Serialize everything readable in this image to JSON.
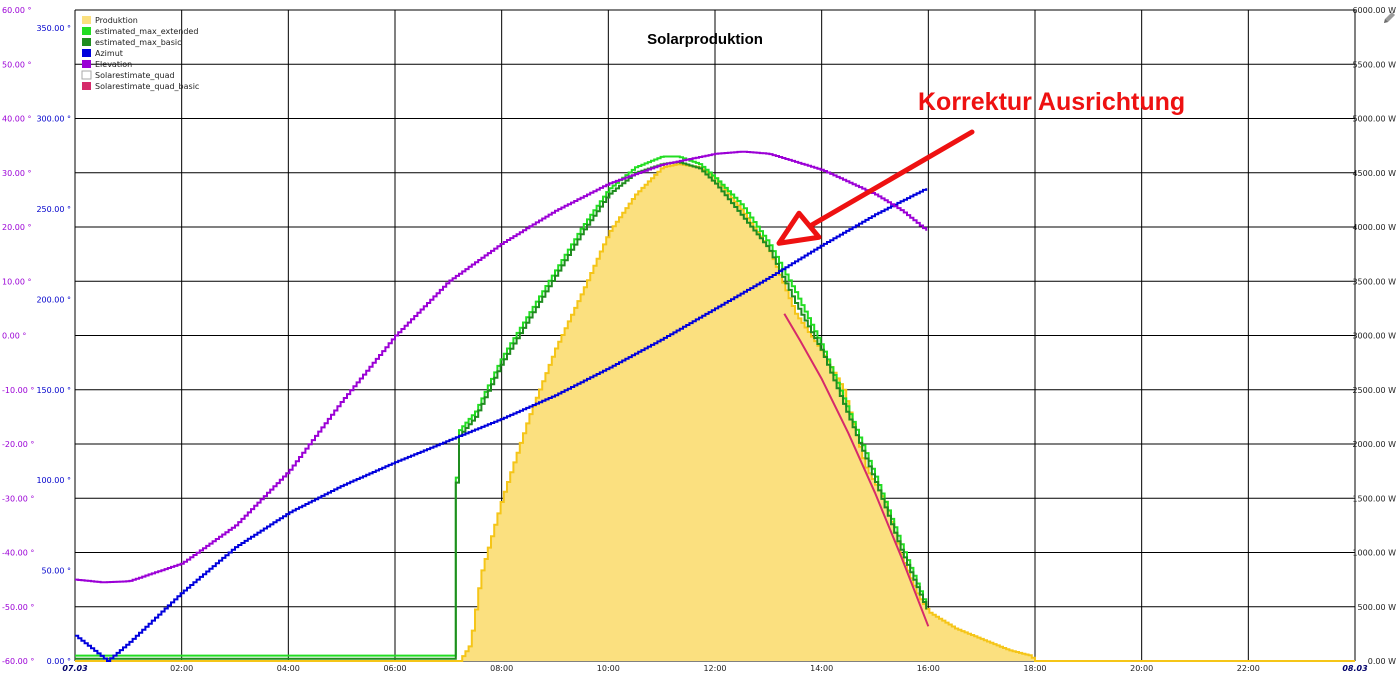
{
  "chart_data": {
    "type": "line",
    "title": "Solarproduktion",
    "x_tick_labels": [
      "07.03",
      "02:00",
      "04:00",
      "06:00",
      "08:00",
      "10:00",
      "12:00",
      "14:00",
      "16:00",
      "18:00",
      "20:00",
      "22:00",
      "08.03"
    ],
    "x_range_hours": [
      0,
      24
    ],
    "y_left_outer": {
      "unit": "°",
      "ticks": [
        "60.00 °",
        "50.00 °",
        "40.00 °",
        "30.00 °",
        "20.00 °",
        "10.00 °",
        "0.00 °",
        "-10.00 °",
        "-20.00 °",
        "-30.00 °",
        "-40.00 °",
        "-50.00 °",
        "-60.00 °"
      ],
      "range": [
        -60,
        60
      ],
      "color": "#9b00d6"
    },
    "y_left_inner": {
      "unit": "°",
      "ticks": [
        "350.00 °",
        "300.00 °",
        "250.00 °",
        "200.00 °",
        "150.00 °",
        "100.00 °",
        "50.00 °",
        "0.00 °"
      ],
      "range": [
        0,
        360
      ],
      "color": "#0000cc"
    },
    "y_right": {
      "unit": "W",
      "ticks": [
        "6000.00 W",
        "5500.00 W",
        "5000.00 W",
        "4500.00 W",
        "4000.00 W",
        "3500.00 W",
        "3000.00 W",
        "2500.00 W",
        "2000.00 W",
        "1500.00 W",
        "1000.00 W",
        "500.00 W",
        "0.00 W"
      ],
      "range": [
        0,
        6000
      ]
    },
    "grid": true,
    "legend_position": "top-left",
    "series": [
      {
        "name": "Produktion",
        "color": "#f5c518",
        "fill": "#fbe07f",
        "axis": "right",
        "points": [
          [
            0,
            0
          ],
          [
            7.2,
            0
          ],
          [
            7.4,
            150
          ],
          [
            7.6,
            800
          ],
          [
            8.0,
            1500
          ],
          [
            8.5,
            2250
          ],
          [
            9.0,
            2880
          ],
          [
            9.5,
            3400
          ],
          [
            10.0,
            3950
          ],
          [
            10.5,
            4300
          ],
          [
            11.0,
            4550
          ],
          [
            11.3,
            4580
          ],
          [
            11.7,
            4550
          ],
          [
            12.0,
            4450
          ],
          [
            12.5,
            4150
          ],
          [
            13.0,
            3800
          ],
          [
            13.5,
            3200
          ],
          [
            14.0,
            2850
          ],
          [
            14.4,
            2500
          ],
          [
            14.8,
            1800
          ],
          [
            15.2,
            1450
          ],
          [
            15.5,
            950
          ],
          [
            15.8,
            600
          ],
          [
            16.0,
            450
          ],
          [
            16.5,
            300
          ],
          [
            17.0,
            200
          ],
          [
            17.5,
            100
          ],
          [
            17.9,
            50
          ],
          [
            18.0,
            0
          ],
          [
            24,
            0
          ]
        ]
      },
      {
        "name": "estimated_max_extended",
        "color": "#22dd22",
        "axis": "right",
        "points": [
          [
            0,
            50
          ],
          [
            7.1,
            50
          ],
          [
            7.15,
            2100
          ],
          [
            7.5,
            2300
          ],
          [
            8.0,
            2800
          ],
          [
            8.5,
            3200
          ],
          [
            9.0,
            3600
          ],
          [
            9.5,
            4000
          ],
          [
            10.0,
            4350
          ],
          [
            10.5,
            4550
          ],
          [
            11.0,
            4650
          ],
          [
            11.3,
            4650
          ],
          [
            11.7,
            4580
          ],
          [
            12.0,
            4450
          ],
          [
            12.5,
            4200
          ],
          [
            13.0,
            3850
          ],
          [
            13.5,
            3400
          ],
          [
            14.0,
            2900
          ],
          [
            14.5,
            2300
          ],
          [
            15.0,
            1700
          ],
          [
            15.5,
            1050
          ],
          [
            16.0,
            450
          ]
        ]
      },
      {
        "name": "estimated_max_basic",
        "color": "#1f8c1f",
        "axis": "right",
        "points": [
          [
            0,
            20
          ],
          [
            7.1,
            20
          ],
          [
            7.15,
            2050
          ],
          [
            7.5,
            2250
          ],
          [
            8.0,
            2750
          ],
          [
            8.5,
            3150
          ],
          [
            9.0,
            3550
          ],
          [
            9.5,
            3950
          ],
          [
            10.0,
            4300
          ],
          [
            10.5,
            4500
          ],
          [
            11.0,
            4580
          ],
          [
            11.3,
            4600
          ],
          [
            11.7,
            4540
          ],
          [
            12.0,
            4400
          ],
          [
            12.5,
            4100
          ],
          [
            13.0,
            3800
          ],
          [
            13.5,
            3300
          ],
          [
            14.0,
            2850
          ],
          [
            14.5,
            2250
          ],
          [
            15.0,
            1650
          ],
          [
            15.5,
            1000
          ],
          [
            16.0,
            430
          ]
        ]
      },
      {
        "name": "Azimut",
        "color": "#0000dd",
        "axis": "inner",
        "points": [
          [
            0,
            14
          ],
          [
            0.6,
            0
          ],
          [
            1.0,
            10
          ],
          [
            2.0,
            38
          ],
          [
            3.0,
            63
          ],
          [
            4.0,
            82
          ],
          [
            5.0,
            97
          ],
          [
            6.0,
            110
          ],
          [
            7.0,
            122
          ],
          [
            8.0,
            134
          ],
          [
            9.0,
            147
          ],
          [
            10.0,
            162
          ],
          [
            11.0,
            178
          ],
          [
            12.0,
            195
          ],
          [
            13.0,
            212
          ],
          [
            14.0,
            230
          ],
          [
            15.0,
            247
          ],
          [
            16.0,
            262
          ]
        ]
      },
      {
        "name": "Elevation",
        "color": "#9b00d6",
        "axis": "outer",
        "points": [
          [
            0,
            -45
          ],
          [
            0.5,
            -45.5
          ],
          [
            1.0,
            -45.3
          ],
          [
            2.0,
            -42
          ],
          [
            3.0,
            -35
          ],
          [
            4.0,
            -25
          ],
          [
            5.0,
            -12
          ],
          [
            6.0,
            0
          ],
          [
            7.0,
            10
          ],
          [
            8.0,
            17
          ],
          [
            9.0,
            23
          ],
          [
            10.0,
            28
          ],
          [
            11.0,
            31.5
          ],
          [
            12.0,
            33.5
          ],
          [
            12.5,
            33.9
          ],
          [
            13.0,
            33.5
          ],
          [
            14.0,
            30.5
          ],
          [
            15.0,
            26
          ],
          [
            15.5,
            23
          ],
          [
            16.0,
            19
          ]
        ]
      },
      {
        "name": "Solarestimate_quad",
        "color": "#dddddd",
        "axis": "right",
        "points": []
      },
      {
        "name": "Solarestimate_quad_basic",
        "color": "#d62a6a",
        "axis": "right",
        "points": [
          [
            13.3,
            3200
          ],
          [
            13.6,
            2950
          ],
          [
            14.0,
            2600
          ],
          [
            14.5,
            2100
          ],
          [
            15.0,
            1550
          ],
          [
            15.5,
            950
          ],
          [
            16.0,
            320
          ]
        ]
      }
    ],
    "annotations": [
      {
        "text": "Korrektur Ausrichtung",
        "color": "#ee1111"
      }
    ]
  }
}
